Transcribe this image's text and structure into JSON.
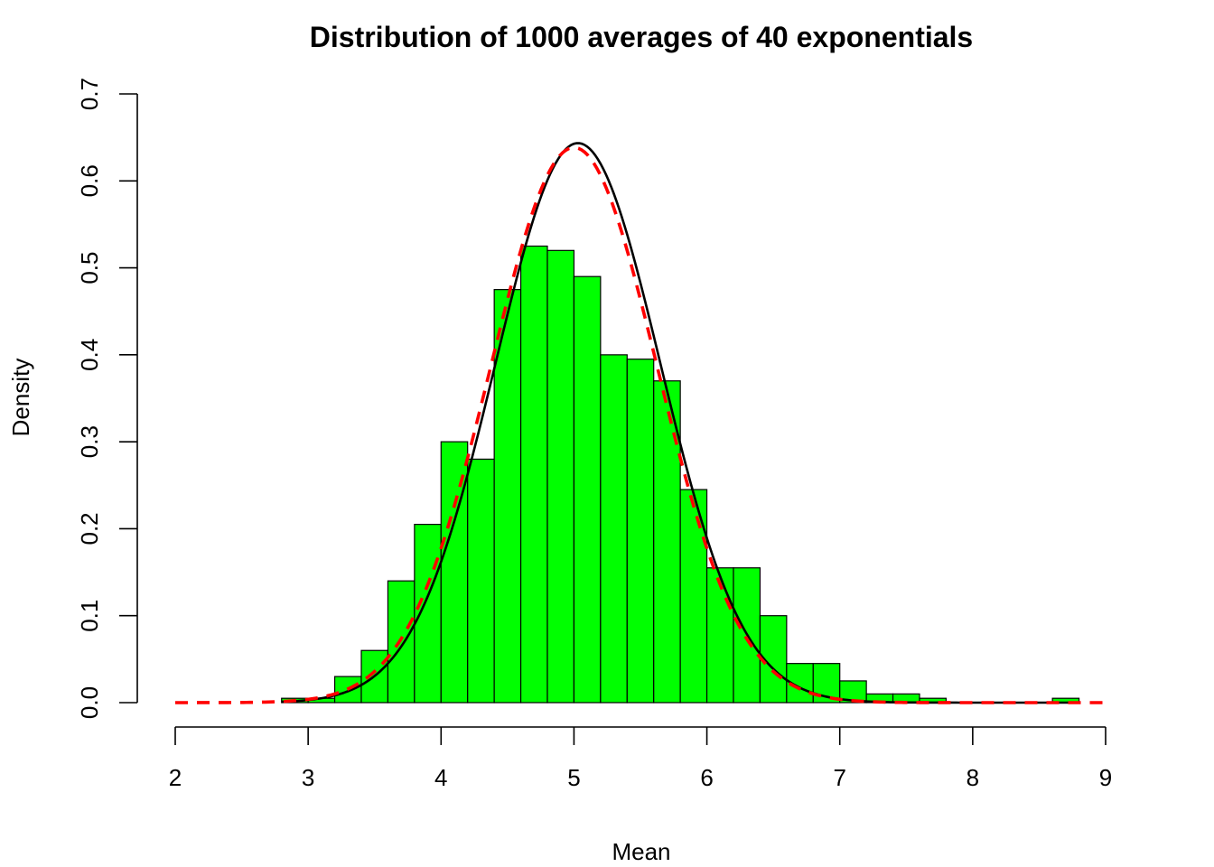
{
  "chart_data": {
    "type": "bar",
    "title": "Distribution of 1000 averages of 40 exponentials",
    "xlabel": "Mean",
    "ylabel": "Density",
    "xlim": [
      2,
      9
    ],
    "ylim": [
      0,
      0.7
    ],
    "x_ticks": [
      2,
      3,
      4,
      5,
      6,
      7,
      8,
      9
    ],
    "y_ticks": [
      "0.0",
      "0.1",
      "0.2",
      "0.3",
      "0.4",
      "0.5",
      "0.6",
      "0.7"
    ],
    "bin_width": 0.2,
    "bin_starts": [
      2.8,
      3.0,
      3.2,
      3.4,
      3.6,
      3.8,
      4.0,
      4.2,
      4.4,
      4.6,
      4.8,
      5.0,
      5.2,
      5.4,
      5.6,
      5.8,
      6.0,
      6.2,
      6.4,
      6.6,
      6.8,
      7.0,
      7.2,
      7.4,
      7.6,
      7.8,
      8.0,
      8.2,
      8.4,
      8.6
    ],
    "densities": [
      0.005,
      0.005,
      0.03,
      0.06,
      0.14,
      0.205,
      0.3,
      0.28,
      0.475,
      0.525,
      0.52,
      0.49,
      0.4,
      0.395,
      0.37,
      0.245,
      0.155,
      0.155,
      0.1,
      0.045,
      0.045,
      0.025,
      0.01,
      0.01,
      0.005,
      0,
      0,
      0,
      0,
      0.005
    ],
    "bar_color": "#00ff00",
    "curves": [
      {
        "style": "solid",
        "color": "#000000",
        "mean": 5.03,
        "sd": 0.62,
        "x_range": [
          2.8,
          8.8
        ]
      },
      {
        "style": "dashed",
        "color": "#ff0000",
        "mean": 5.0,
        "sd": 0.625,
        "x_range": [
          2.0,
          9.0
        ]
      }
    ]
  }
}
